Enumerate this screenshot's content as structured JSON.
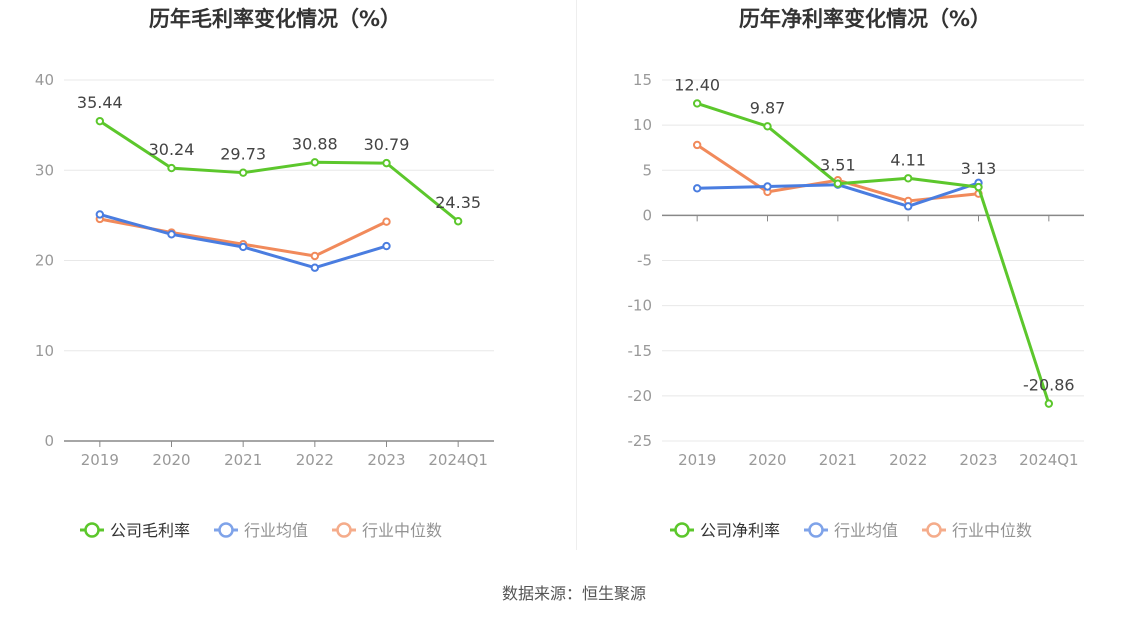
{
  "source_text": "数据来源：恒生聚源",
  "colors": {
    "company": "#5cc72c",
    "industry_avg": "#4a7de0",
    "industry_median": "#f18a5b",
    "axis_text": "#999999",
    "grid": "#e8e8e8",
    "axis_line": "#888888",
    "label_text": "#444444"
  },
  "chart_data": [
    {
      "type": "line",
      "title": "历年毛利率变化情况（%）",
      "categories": [
        "2019",
        "2020",
        "2021",
        "2022",
        "2023",
        "2024Q1"
      ],
      "ylim": [
        0,
        40
      ],
      "yticks": [
        0,
        10,
        20,
        30,
        40
      ],
      "grid": true,
      "legend_position": "bottom",
      "series": [
        {
          "name": "公司毛利率",
          "color_key": "company",
          "values": [
            35.44,
            30.24,
            29.73,
            30.88,
            30.79,
            24.35
          ],
          "labels": [
            "35.44",
            "30.24",
            "29.73",
            "30.88",
            "30.79",
            "24.35"
          ]
        },
        {
          "name": "行业均值",
          "color_key": "industry_avg",
          "values": [
            25.1,
            22.9,
            21.5,
            19.2,
            21.6,
            null
          ]
        },
        {
          "name": "行业中位数",
          "color_key": "industry_median",
          "values": [
            24.6,
            23.1,
            21.8,
            20.5,
            24.3,
            null
          ]
        }
      ]
    },
    {
      "type": "line",
      "title": "历年净利率变化情况（%）",
      "categories": [
        "2019",
        "2020",
        "2021",
        "2022",
        "2023",
        "2024Q1"
      ],
      "ylim": [
        -25,
        15
      ],
      "yticks": [
        -25,
        -20,
        -15,
        -10,
        -5,
        0,
        5,
        10,
        15
      ],
      "grid": true,
      "legend_position": "bottom",
      "series": [
        {
          "name": "公司净利率",
          "color_key": "company",
          "values": [
            12.4,
            9.87,
            3.51,
            4.11,
            3.13,
            -20.86
          ],
          "labels": [
            "12.40",
            "9.87",
            "3.51",
            "4.11",
            "3.13",
            "-20.86"
          ]
        },
        {
          "name": "行业均值",
          "color_key": "industry_avg",
          "values": [
            3.0,
            3.2,
            3.4,
            1.0,
            3.6,
            null
          ]
        },
        {
          "name": "行业中位数",
          "color_key": "industry_median",
          "values": [
            7.8,
            2.6,
            3.9,
            1.6,
            2.4,
            null
          ]
        }
      ]
    }
  ]
}
